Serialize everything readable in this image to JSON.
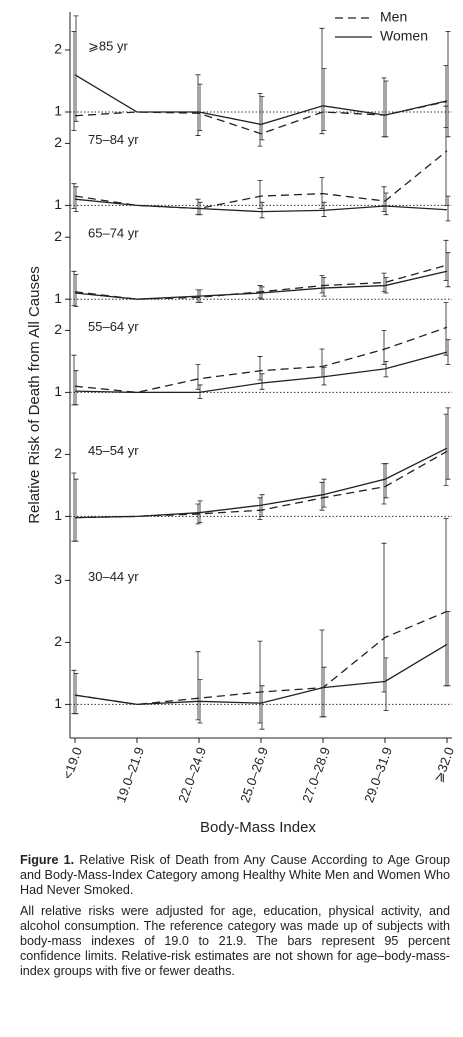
{
  "chart_data": [
    {
      "type": "line",
      "title": "⩾85 yr",
      "ylim": [
        0.6,
        2.5
      ],
      "yticks": [
        1,
        2
      ],
      "reference_line": 1,
      "legend": "upper right",
      "series": [
        {
          "name": "Men",
          "color": "#222222",
          "line_style": "dashed",
          "values": [
            0.94,
            1,
            0.98,
            0.65,
            1.0,
            0.95,
            1.17
          ],
          "lower": [
            0.7,
            null,
            0.62,
            0.45,
            0.65,
            0.6,
            0.75
          ],
          "upper": [
            2.3,
            null,
            1.6,
            1.3,
            2.35,
            1.55,
            1.75
          ]
        },
        {
          "name": "Women",
          "color": "#222222",
          "line_style": "solid",
          "values": [
            1.6,
            1,
            1.0,
            0.8,
            1.1,
            0.95,
            1.18
          ],
          "lower": [
            0.85,
            null,
            0.7,
            0.55,
            0.7,
            0.6,
            0.6
          ],
          "upper": [
            2.55,
            null,
            1.45,
            1.25,
            1.7,
            1.5,
            2.3
          ]
        }
      ]
    },
    {
      "type": "line",
      "title": "75–84 yr",
      "ylim": [
        0.7,
        2.2
      ],
      "yticks": [
        1,
        2
      ],
      "reference_line": 1,
      "series": [
        {
          "name": "Men",
          "color": "#222222",
          "line_style": "dashed",
          "values": [
            1.15,
            1,
            0.95,
            1.15,
            1.19,
            1.07,
            1.88
          ],
          "lower": [
            0.95,
            null,
            0.85,
            0.95,
            0.95,
            0.9,
            1.0
          ],
          "upper": [
            1.35,
            null,
            1.1,
            1.4,
            1.45,
            1.3,
            2.6
          ]
        },
        {
          "name": "Women",
          "color": "#222222",
          "line_style": "solid",
          "values": [
            1.1,
            1,
            0.95,
            0.9,
            0.92,
            0.99,
            0.93
          ],
          "lower": [
            0.9,
            null,
            0.85,
            0.8,
            0.82,
            0.85,
            0.75
          ],
          "upper": [
            1.3,
            null,
            1.05,
            1.05,
            1.05,
            1.2,
            1.15
          ]
        }
      ]
    },
    {
      "type": "line",
      "title": "65–74 yr",
      "ylim": [
        0.8,
        2.1
      ],
      "yticks": [
        1,
        2
      ],
      "reference_line": 1,
      "series": [
        {
          "name": "Men",
          "color": "#222222",
          "line_style": "dashed",
          "values": [
            1.12,
            1,
            1.03,
            1.12,
            1.22,
            1.27,
            1.55
          ],
          "lower": [
            0.9,
            null,
            0.95,
            1.02,
            1.1,
            1.12,
            1.3
          ],
          "upper": [
            1.45,
            null,
            1.15,
            1.22,
            1.38,
            1.42,
            1.95
          ]
        },
        {
          "name": "Women",
          "color": "#222222",
          "line_style": "solid",
          "values": [
            1.1,
            1,
            1.05,
            1.1,
            1.18,
            1.22,
            1.45
          ],
          "lower": [
            0.88,
            null,
            0.95,
            1.0,
            1.05,
            1.1,
            1.2
          ],
          "upper": [
            1.4,
            null,
            1.15,
            1.2,
            1.35,
            1.35,
            1.75
          ]
        }
      ]
    },
    {
      "type": "line",
      "title": "55–64 yr",
      "ylim": [
        0.7,
        2.2
      ],
      "yticks": [
        1,
        2
      ],
      "reference_line": 1,
      "series": [
        {
          "name": "Men",
          "color": "#222222",
          "line_style": "dashed",
          "values": [
            1.1,
            1,
            1.22,
            1.35,
            1.42,
            1.7,
            2.05
          ],
          "lower": [
            0.8,
            null,
            1.05,
            1.2,
            1.25,
            1.45,
            1.6
          ],
          "upper": [
            1.6,
            null,
            1.45,
            1.58,
            1.7,
            2.0,
            2.45
          ]
        },
        {
          "name": "Women",
          "color": "#222222",
          "line_style": "solid",
          "values": [
            1.02,
            1,
            1.0,
            1.15,
            1.25,
            1.38,
            1.65
          ],
          "lower": [
            0.8,
            null,
            0.9,
            1.05,
            1.12,
            1.25,
            1.45
          ],
          "upper": [
            1.35,
            null,
            1.12,
            1.3,
            1.4,
            1.5,
            1.85
          ]
        }
      ]
    },
    {
      "type": "line",
      "title": "45–54 yr",
      "ylim": [
        0.5,
        2.7
      ],
      "yticks": [
        1,
        2
      ],
      "reference_line": 1,
      "series": [
        {
          "name": "Men",
          "color": "#222222",
          "line_style": "dashed",
          "values": [
            0.98,
            1,
            1.04,
            1.1,
            1.3,
            1.48,
            2.05
          ],
          "lower": [
            0.6,
            null,
            0.88,
            0.95,
            1.1,
            1.2,
            1.5
          ],
          "upper": [
            1.7,
            null,
            1.2,
            1.3,
            1.55,
            1.85,
            2.65
          ]
        },
        {
          "name": "Women",
          "color": "#222222",
          "line_style": "solid",
          "values": [
            0.98,
            1,
            1.06,
            1.18,
            1.35,
            1.6,
            2.1
          ],
          "lower": [
            0.6,
            null,
            0.9,
            1.0,
            1.15,
            1.3,
            1.6
          ],
          "upper": [
            1.6,
            null,
            1.25,
            1.35,
            1.6,
            1.85,
            2.75
          ]
        }
      ]
    },
    {
      "type": "line",
      "title": "30–44 yr",
      "ylim": [
        0.5,
        3.2
      ],
      "yticks": [
        1,
        2,
        3
      ],
      "reference_line": 1,
      "categories": [
        "<19.0",
        "19.0–21.9",
        "22.0–24.9",
        "25.0–26.9",
        "27.0–28.9",
        "29.0–31.9",
        "⩾32.0"
      ],
      "series": [
        {
          "name": "Men",
          "color": "#222222",
          "line_style": "dashed",
          "values": [
            1.15,
            1,
            1.1,
            1.2,
            1.27,
            2.08,
            2.5
          ],
          "lower": [
            0.85,
            null,
            0.75,
            0.7,
            0.8,
            1.2,
            1.3
          ],
          "upper": [
            1.55,
            null,
            1.85,
            2.02,
            2.2,
            3.6,
            4.0
          ]
        },
        {
          "name": "Women",
          "color": "#222222",
          "line_style": "solid",
          "values": [
            1.15,
            1,
            1.05,
            1.02,
            1.27,
            1.37,
            1.97
          ],
          "lower": [
            0.85,
            null,
            0.7,
            0.6,
            0.8,
            0.9,
            1.3
          ],
          "upper": [
            1.5,
            null,
            1.4,
            1.3,
            1.6,
            1.75,
            2.5
          ]
        }
      ]
    }
  ],
  "y_label": "Relative Risk of Death from All Causes",
  "x_label": "Body-Mass Index",
  "caption": {
    "label": "Figure 1.",
    "title": "Relative Risk of Death from Any Cause According to Age Group and Body-Mass-Index Category among Healthy White Men and Women Who Had Never Smoked.",
    "note": "All relative risks were adjusted for age, education, physical activity, and alcohol consumption. The reference category was made up of subjects with body-mass indexes of 19.0 to 21.9. The bars represent 95 percent confidence limits. Relative-risk estimates are not shown for age–body-mass-index groups with five or fewer deaths."
  }
}
